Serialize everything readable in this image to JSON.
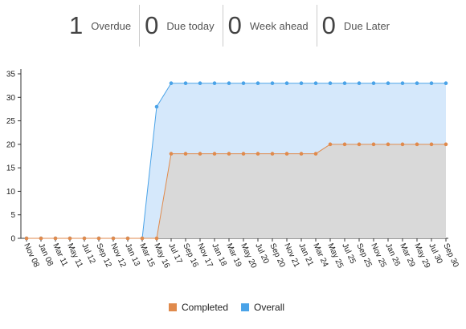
{
  "stats": [
    {
      "value": 1,
      "label": "Overdue"
    },
    {
      "value": 0,
      "label": "Due today"
    },
    {
      "value": 0,
      "label": "Week ahead"
    },
    {
      "value": 0,
      "label": "Due Later"
    }
  ],
  "chart_data": {
    "type": "area",
    "categories": [
      "Nov 08",
      "Jan 08",
      "Mar 11",
      "May 11",
      "Jul 12",
      "Sep 12",
      "Nov 12",
      "Jan 13",
      "Mar 15",
      "May 16",
      "Jul 17",
      "Sep 16",
      "Nov 17",
      "Jan 18",
      "Mar 19",
      "May 20",
      "Jul 20",
      "Sep 20",
      "Nov 21",
      "Jan 21",
      "Mar 24",
      "May 25",
      "Jul 25",
      "Sep 25",
      "Nov 25",
      "Jan 26",
      "Mar 29",
      "May 29",
      "Jul 30",
      "Sep 30"
    ],
    "series": [
      {
        "name": "Completed",
        "color": "#e08a4c",
        "fill": "#d9d9d9",
        "values": [
          0,
          0,
          0,
          0,
          0,
          0,
          0,
          0,
          0,
          0,
          18,
          18,
          18,
          18,
          18,
          18,
          18,
          18,
          18,
          18,
          18,
          20,
          20,
          20,
          20,
          20,
          20,
          20,
          20,
          20
        ]
      },
      {
        "name": "Overall",
        "color": "#4aa3e8",
        "fill": "#d5e8fb",
        "values": [
          0,
          0,
          0,
          0,
          0,
          0,
          0,
          0,
          0,
          28,
          33,
          33,
          33,
          33,
          33,
          33,
          33,
          33,
          33,
          33,
          33,
          33,
          33,
          33,
          33,
          33,
          33,
          33,
          33,
          33
        ]
      }
    ],
    "ylim": [
      0,
      35
    ],
    "yticks": [
      0,
      5,
      10,
      15,
      20,
      25,
      30,
      35
    ]
  }
}
